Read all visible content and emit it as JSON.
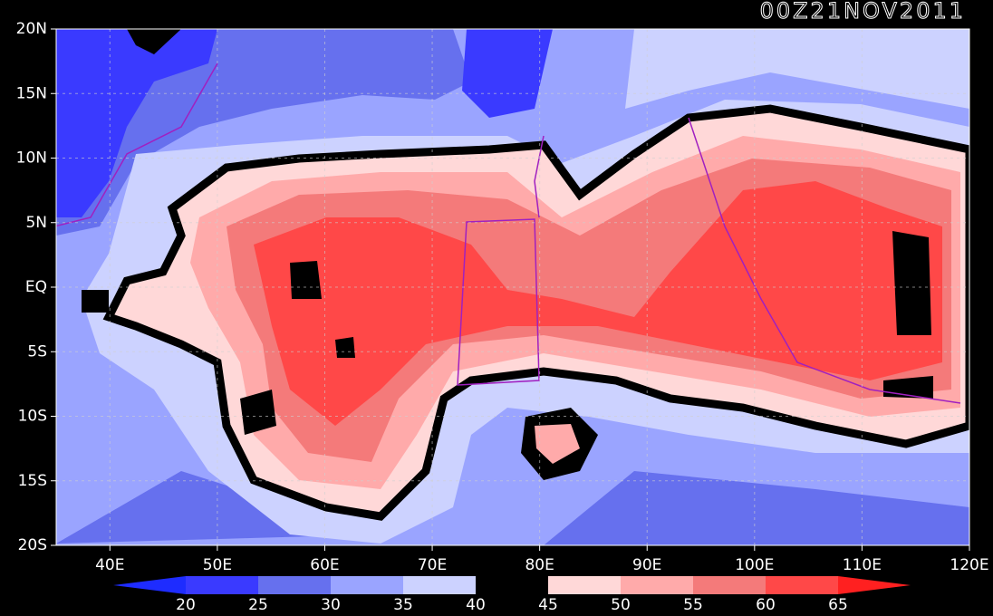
{
  "title": "00Z21NOV2011",
  "lat_labels": [
    "20N",
    "15N",
    "10N",
    "5N",
    "EQ",
    "5S",
    "10S",
    "15S",
    "20S"
  ],
  "lon_labels": [
    "40E",
    "50E",
    "60E",
    "70E",
    "80E",
    "90E",
    "100E",
    "110E",
    "120E"
  ],
  "colorbar": {
    "ticks": [
      20,
      25,
      30,
      35,
      40,
      45,
      50,
      55,
      60,
      65
    ],
    "colors": [
      "#1e2cff",
      "#3a3aff",
      "#6670ee",
      "#9aa4ff",
      "#ccd2ff",
      "#000000",
      "#ffd8d8",
      "#ffaaaa",
      "#f47a7a",
      "#ff4848",
      "#ff2020"
    ]
  }
}
